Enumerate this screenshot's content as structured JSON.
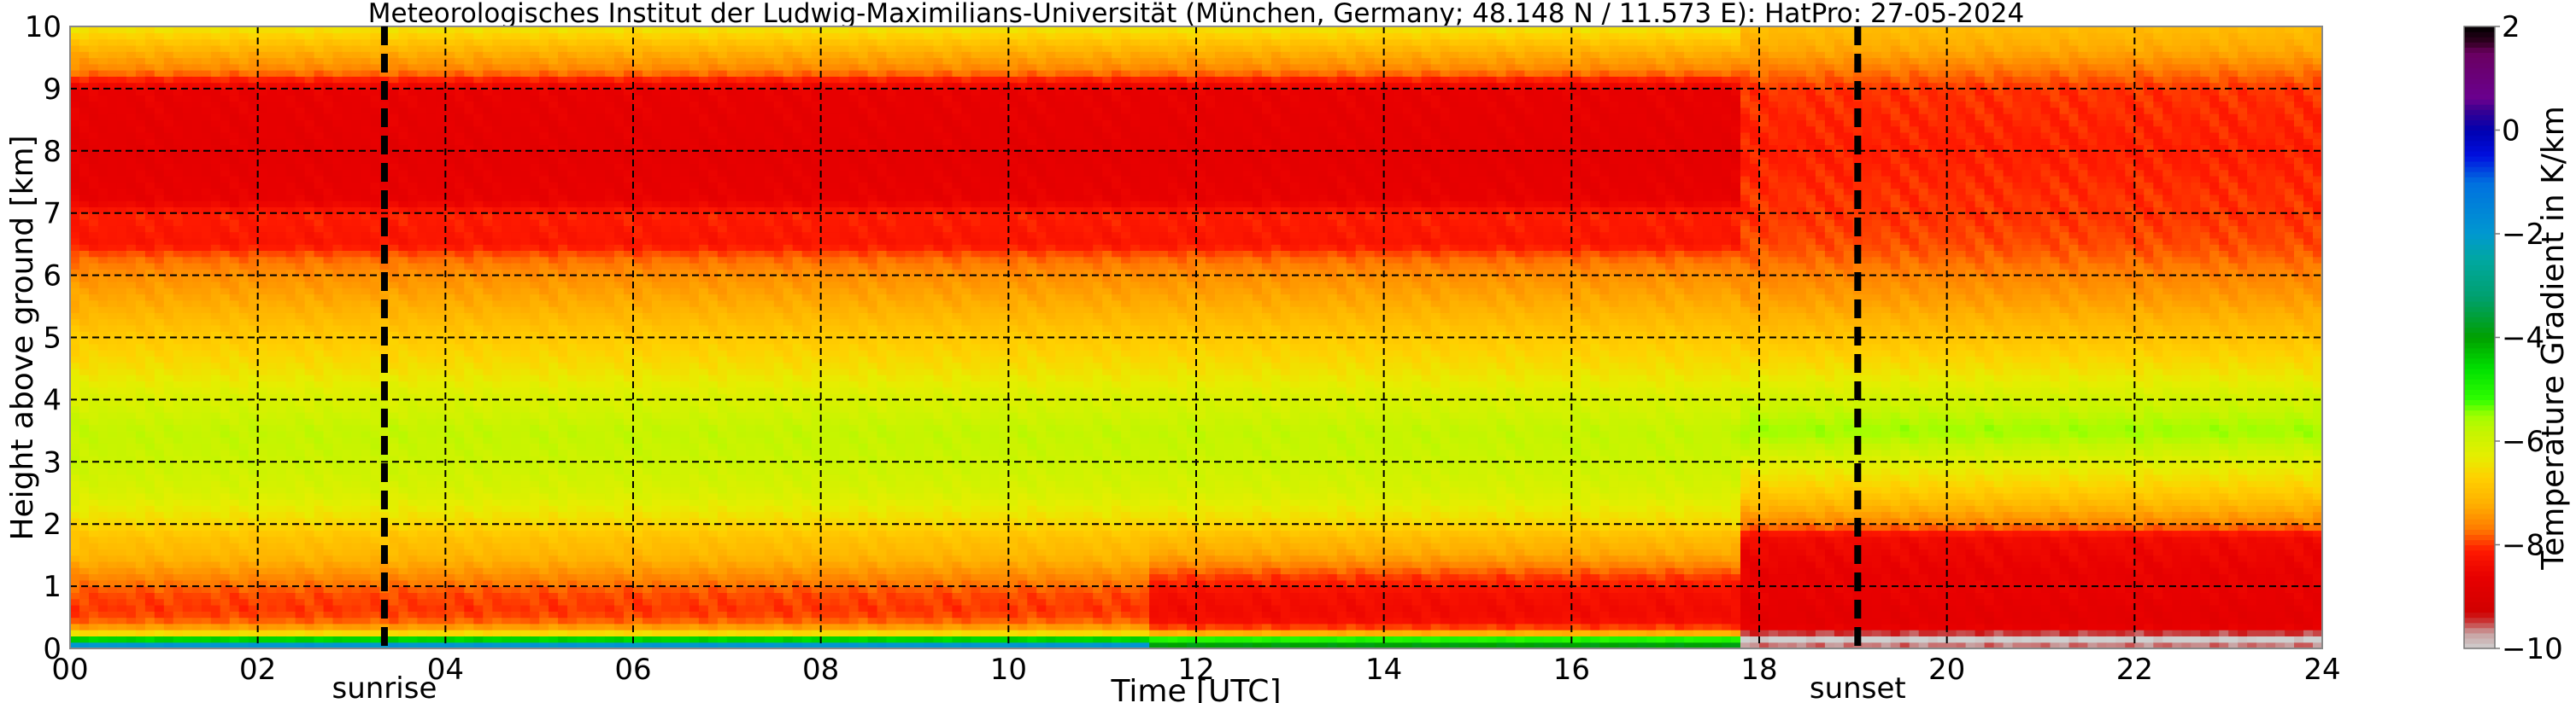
{
  "chart_data": {
    "type": "heatmap",
    "title": "Meteorologisches Institut der Ludwig-Maximilians-Universität (München, Germany; 48.148 N / 11.573 E):    HatPro: 27-05-2024",
    "xlabel": "Time [UTC]",
    "ylabel": "Height above ground [km]",
    "xlim": [
      0,
      24
    ],
    "ylim": [
      0,
      10
    ],
    "x_ticks": [
      "00",
      "02",
      "04",
      "06",
      "08",
      "10",
      "12",
      "14",
      "16",
      "18",
      "20",
      "22",
      "24"
    ],
    "y_ticks": [
      "0",
      "1",
      "2",
      "3",
      "4",
      "5",
      "6",
      "7",
      "8",
      "9",
      "10"
    ],
    "grid": true,
    "colorbar": {
      "label": "Temperature Gradient in K/km",
      "range": [
        -10,
        2
      ],
      "ticks": [
        "2",
        "0",
        "−2",
        "−4",
        "−6",
        "−8",
        "−10"
      ],
      "colormap": [
        [
          -10,
          "#cfcfcf"
        ],
        [
          -9.7,
          "#c8a0a0"
        ],
        [
          -9.5,
          "#c84040"
        ],
        [
          -9.3,
          "#d00000"
        ],
        [
          -8.6,
          "#e80000"
        ],
        [
          -8.1,
          "#ff1a00"
        ],
        [
          -7.7,
          "#ff7a00"
        ],
        [
          -7.2,
          "#ffb000"
        ],
        [
          -6.7,
          "#ffd000"
        ],
        [
          -6.3,
          "#e6ee00"
        ],
        [
          -5.8,
          "#c4f500"
        ],
        [
          -5.5,
          "#a0ff00"
        ],
        [
          -5.2,
          "#30ff00"
        ],
        [
          -4.6,
          "#00e000"
        ],
        [
          -4,
          "#00a000"
        ],
        [
          -3.2,
          "#00a070"
        ],
        [
          -2.5,
          "#00a8a0"
        ],
        [
          -2,
          "#0098d0"
        ],
        [
          -1,
          "#0070e0"
        ],
        [
          -0.5,
          "#0010e0"
        ],
        [
          0,
          "#0000b0"
        ],
        [
          0.4,
          "#3a0090"
        ],
        [
          0.6,
          "#6a0090"
        ],
        [
          1.5,
          "#6a0060"
        ],
        [
          1.7,
          "#300020"
        ],
        [
          2,
          "#000000"
        ]
      ]
    },
    "annotations": [
      {
        "text": "sunrise",
        "time": 3.35
      },
      {
        "text": "sunset",
        "time": 19.05
      }
    ],
    "heights_km": [
      0,
      0.08,
      0.15,
      0.22,
      0.3,
      0.45,
      0.6,
      0.9,
      1.2,
      1.5,
      1.8,
      2.0,
      2.5,
      3.0,
      3.5,
      4.0,
      4.5,
      5.0,
      5.5,
      6.0,
      6.3,
      6.5,
      7.0,
      7.2,
      8.0,
      9.0,
      9.3,
      9.6,
      10
    ],
    "segments": [
      {
        "t_start": 0,
        "t_end": 11.5,
        "values": [
          -0.6,
          -2.8,
          -4.5,
          -6.2,
          -7.2,
          -7.8,
          -8.0,
          -7.9,
          -7.5,
          -7.1,
          -6.9,
          -6.6,
          -6.1,
          -5.9,
          -5.8,
          -6.1,
          -6.5,
          -6.8,
          -7.2,
          -7.5,
          -7.8,
          -8.2,
          -8.1,
          -8.6,
          -8.7,
          -8.6,
          -7.6,
          -7.2,
          -6.4
        ]
      },
      {
        "t_start": 11.5,
        "t_end": 17.85,
        "values": [
          -3.5,
          -4.2,
          -5.0,
          -6.8,
          -7.8,
          -8.3,
          -8.4,
          -8.3,
          -7.9,
          -7.3,
          -7.0,
          -6.6,
          -6.1,
          -5.9,
          -5.8,
          -6.1,
          -6.5,
          -6.8,
          -7.2,
          -7.5,
          -7.8,
          -8.2,
          -8.1,
          -8.6,
          -8.7,
          -8.6,
          -7.6,
          -7.2,
          -6.4
        ]
      },
      {
        "t_start": 17.85,
        "t_end": 24,
        "values": [
          -10,
          -9.4,
          -10,
          -10,
          -8.6,
          -8.7,
          -8.7,
          -8.6,
          -8.6,
          -8.5,
          -8.4,
          -7.6,
          -6.8,
          -6.2,
          -5.5,
          -6.0,
          -6.5,
          -6.9,
          -7.3,
          -7.6,
          -7.8,
          -7.9,
          -8.0,
          -8.0,
          -8.1,
          -8.0,
          -7.7,
          -7.3,
          -7.0
        ]
      }
    ]
  }
}
